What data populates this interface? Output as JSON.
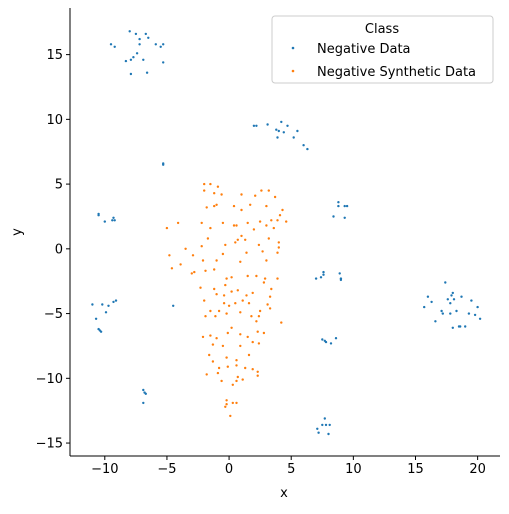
{
  "chart_data": {
    "type": "scatter",
    "xlabel": "x",
    "ylabel": "y",
    "xlim": [
      -12.8,
      21.8
    ],
    "ylim": [
      -16.0,
      18.6
    ],
    "x_ticks": [
      -10,
      -5,
      0,
      5,
      10,
      15,
      20
    ],
    "y_ticks": [
      -15,
      -10,
      -5,
      0,
      5,
      10,
      15
    ],
    "x_tick_labels": [
      "−10",
      "−5",
      "0",
      "5",
      "10",
      "15",
      "20"
    ],
    "y_tick_labels": [
      "−15",
      "−10",
      "−5",
      "0",
      "5",
      "10",
      "15"
    ],
    "grid": false,
    "legend": {
      "title": "Class",
      "placement": "top-right",
      "entries": [
        "Negative Data",
        "Negative Synthetic Data"
      ]
    },
    "series": [
      {
        "name": "Negative Data",
        "color": "#1f77b4",
        "points": [
          [
            -9.5,
            15.8
          ],
          [
            -9.2,
            15.6
          ],
          [
            -8.0,
            16.8
          ],
          [
            -7.5,
            16.6
          ],
          [
            -7.2,
            16.2
          ],
          [
            -6.7,
            16.6
          ],
          [
            -6.5,
            16.3
          ],
          [
            -5.9,
            15.8
          ],
          [
            -5.5,
            15.6
          ],
          [
            -5.3,
            15.8
          ],
          [
            -7.2,
            15.8
          ],
          [
            -8.3,
            14.5
          ],
          [
            -7.9,
            14.6
          ],
          [
            -7.7,
            14.8
          ],
          [
            -6.9,
            14.6
          ],
          [
            -6.6,
            13.6
          ],
          [
            -5.3,
            14.4
          ],
          [
            -7.9,
            13.5
          ],
          [
            -7.4,
            15.1
          ],
          [
            2.0,
            9.5
          ],
          [
            2.2,
            9.5
          ],
          [
            3.1,
            9.6
          ],
          [
            4.2,
            9.8
          ],
          [
            4.7,
            9.5
          ],
          [
            3.8,
            9.2
          ],
          [
            4.0,
            9.1
          ],
          [
            4.4,
            9.0
          ],
          [
            3.9,
            8.6
          ],
          [
            5.2,
            8.6
          ],
          [
            5.5,
            9.1
          ],
          [
            6.0,
            8.0
          ],
          [
            6.3,
            7.7
          ],
          [
            -5.3,
            6.5
          ],
          [
            -5.3,
            6.6
          ],
          [
            -10.5,
            2.7
          ],
          [
            -10.5,
            2.6
          ],
          [
            -10.0,
            2.1
          ],
          [
            -9.4,
            2.2
          ],
          [
            -9.3,
            2.4
          ],
          [
            -9.2,
            2.2
          ],
          [
            -11.0,
            -4.3
          ],
          [
            -10.2,
            -4.3
          ],
          [
            -9.7,
            -4.4
          ],
          [
            -9.3,
            -4.1
          ],
          [
            -9.1,
            -4.0
          ],
          [
            -9.9,
            -4.9
          ],
          [
            -10.7,
            -5.4
          ],
          [
            -10.5,
            -6.2
          ],
          [
            -10.4,
            -6.3
          ],
          [
            -10.3,
            -6.4
          ],
          [
            -4.5,
            -4.4
          ],
          [
            -6.9,
            -10.9
          ],
          [
            -6.8,
            -11.1
          ],
          [
            -6.7,
            -11.2
          ],
          [
            -6.9,
            -11.9
          ],
          [
            8.8,
            3.6
          ],
          [
            8.8,
            3.3
          ],
          [
            9.3,
            3.3
          ],
          [
            9.5,
            3.3
          ],
          [
            8.4,
            2.5
          ],
          [
            9.3,
            2.4
          ],
          [
            7.6,
            -1.8
          ],
          [
            7.6,
            -2.0
          ],
          [
            7.0,
            -2.3
          ],
          [
            7.4,
            -2.2
          ],
          [
            8.9,
            -1.9
          ],
          [
            9.0,
            -2.3
          ],
          [
            9.0,
            -2.4
          ],
          [
            7.5,
            -7.0
          ],
          [
            7.7,
            -7.1
          ],
          [
            7.8,
            -7.2
          ],
          [
            8.2,
            -7.3
          ],
          [
            8.6,
            -6.9
          ],
          [
            7.7,
            -13.1
          ],
          [
            7.5,
            -13.6
          ],
          [
            7.8,
            -13.6
          ],
          [
            7.1,
            -13.9
          ],
          [
            8.1,
            -13.6
          ],
          [
            7.2,
            -14.2
          ],
          [
            8.0,
            -14.3
          ],
          [
            15.7,
            -4.5
          ],
          [
            16.0,
            -3.7
          ],
          [
            16.3,
            -4.1
          ],
          [
            16.6,
            -5.6
          ],
          [
            17.1,
            -4.8
          ],
          [
            17.4,
            -2.6
          ],
          [
            17.6,
            -3.9
          ],
          [
            17.8,
            -4.2
          ],
          [
            17.9,
            -3.6
          ],
          [
            18.0,
            -3.4
          ],
          [
            18.1,
            -3.9
          ],
          [
            17.8,
            -5.0
          ],
          [
            18.0,
            -6.1
          ],
          [
            18.3,
            -4.8
          ],
          [
            18.6,
            -6.0
          ],
          [
            18.7,
            -3.7
          ],
          [
            19.0,
            -6.0
          ],
          [
            19.3,
            -5.0
          ],
          [
            19.5,
            -4.0
          ],
          [
            19.8,
            -5.1
          ],
          [
            20.0,
            -4.5
          ],
          [
            20.2,
            -5.4
          ],
          [
            17.2,
            -5.0
          ],
          [
            18.5,
            -6.0
          ]
        ]
      },
      {
        "name": "Negative Synthetic Data",
        "color": "#ff7f0e",
        "points": [
          [
            -2.0,
            5.0
          ],
          [
            -1.5,
            5.0
          ],
          [
            -0.9,
            4.8
          ],
          [
            -1.2,
            4.3
          ],
          [
            -2.0,
            4.5
          ],
          [
            -0.6,
            4.2
          ],
          [
            1.0,
            4.2
          ],
          [
            2.1,
            4.1
          ],
          [
            2.6,
            4.5
          ],
          [
            3.2,
            4.5
          ],
          [
            3.7,
            4.0
          ],
          [
            1.7,
            3.4
          ],
          [
            4.3,
            3.0
          ],
          [
            4.1,
            2.6
          ],
          [
            -1.8,
            3.2
          ],
          [
            -1.2,
            3.3
          ],
          [
            -1.0,
            3.4
          ],
          [
            0.4,
            3.3
          ],
          [
            1.0,
            3.0
          ],
          [
            3.0,
            3.3
          ],
          [
            -4.1,
            2.0
          ],
          [
            -5.0,
            1.6
          ],
          [
            -2.2,
            2.0
          ],
          [
            -1.5,
            1.6
          ],
          [
            -0.5,
            2.0
          ],
          [
            0.4,
            1.8
          ],
          [
            0.6,
            1.8
          ],
          [
            1.5,
            2.0
          ],
          [
            2.5,
            2.1
          ],
          [
            3.4,
            2.2
          ],
          [
            3.9,
            2.2
          ],
          [
            4.6,
            2.1
          ],
          [
            3.0,
            1.8
          ],
          [
            2.0,
            1.5
          ],
          [
            3.6,
            1.6
          ],
          [
            1.0,
            1.0
          ],
          [
            0.7,
            0.7
          ],
          [
            1.3,
            0.7
          ],
          [
            0.5,
            0.5
          ],
          [
            3.2,
            0.8
          ],
          [
            2.4,
            0.3
          ],
          [
            4.0,
            0.5
          ],
          [
            4.0,
            0.1
          ],
          [
            -1.7,
            0.8
          ],
          [
            -2.2,
            0.2
          ],
          [
            -0.3,
            0.3
          ],
          [
            -3.5,
            0.0
          ],
          [
            -4.8,
            -0.5
          ],
          [
            -2.9,
            -0.5
          ],
          [
            -0.5,
            -0.4
          ],
          [
            1.4,
            -0.3
          ],
          [
            2.7,
            -0.2
          ],
          [
            3.9,
            -0.3
          ],
          [
            -3.9,
            -1.2
          ],
          [
            -4.6,
            -1.5
          ],
          [
            -2.1,
            -0.9
          ],
          [
            -1.0,
            -0.9
          ],
          [
            0.9,
            -1.0
          ],
          [
            3.0,
            -0.9
          ],
          [
            -3.0,
            -1.9
          ],
          [
            -2.8,
            -1.8
          ],
          [
            -1.9,
            -1.7
          ],
          [
            -1.2,
            -1.6
          ],
          [
            0.2,
            -2.2
          ],
          [
            1.5,
            -2.1
          ],
          [
            2.2,
            -2.1
          ],
          [
            2.9,
            -2.3
          ],
          [
            3.9,
            -2.3
          ],
          [
            -0.2,
            -2.3
          ],
          [
            -2.3,
            -3.0
          ],
          [
            -1.2,
            -3.1
          ],
          [
            -0.3,
            -2.8
          ],
          [
            0.7,
            -3.2
          ],
          [
            1.9,
            -3.4
          ],
          [
            2.8,
            -2.6
          ],
          [
            3.4,
            -3.1
          ],
          [
            -1.0,
            -3.5
          ],
          [
            -0.4,
            -3.6
          ],
          [
            0.2,
            -3.3
          ],
          [
            1.4,
            -3.6
          ],
          [
            3.3,
            -3.7
          ],
          [
            -2.0,
            -4.0
          ],
          [
            -0.4,
            -4.2
          ],
          [
            0.5,
            -4.2
          ],
          [
            1.1,
            -4.0
          ],
          [
            1.6,
            -4.2
          ],
          [
            3.1,
            -4.3
          ],
          [
            -1.5,
            -4.8
          ],
          [
            -0.8,
            -4.8
          ],
          [
            0.0,
            -4.4
          ],
          [
            0.9,
            -4.9
          ],
          [
            2.5,
            -4.8
          ],
          [
            3.3,
            -4.6
          ],
          [
            -1.9,
            -5.2
          ],
          [
            -1.1,
            -5.2
          ],
          [
            -0.2,
            -5.0
          ],
          [
            1.8,
            -5.2
          ],
          [
            2.4,
            -5.2
          ],
          [
            4.2,
            -5.7
          ],
          [
            2.2,
            -5.6
          ],
          [
            -2.1,
            -6.8
          ],
          [
            -1.5,
            -6.7
          ],
          [
            -1.0,
            -6.9
          ],
          [
            -0.1,
            -6.5
          ],
          [
            0.2,
            -6.1
          ],
          [
            0.9,
            -6.6
          ],
          [
            1.5,
            -6.8
          ],
          [
            2.3,
            -6.4
          ],
          [
            2.8,
            -6.5
          ],
          [
            1.9,
            -7.2
          ],
          [
            2.4,
            -7.3
          ],
          [
            -1.3,
            -7.4
          ],
          [
            -0.5,
            -7.5
          ],
          [
            0.9,
            -7.5
          ],
          [
            -1.6,
            -8.2
          ],
          [
            -0.2,
            -8.4
          ],
          [
            1.6,
            -8.2
          ],
          [
            0.6,
            -8.6
          ],
          [
            -1.3,
            -8.7
          ],
          [
            1.9,
            -9.3
          ],
          [
            2.3,
            -9.5
          ],
          [
            -0.8,
            -9.2
          ],
          [
            -0.1,
            -9.1
          ],
          [
            0.6,
            -9.0
          ],
          [
            1.3,
            -9.2
          ],
          [
            -1.8,
            -9.7
          ],
          [
            -0.9,
            -9.6
          ],
          [
            0.7,
            -9.9
          ],
          [
            2.3,
            -9.8
          ],
          [
            1.1,
            -10.1
          ],
          [
            0.3,
            -10.5
          ],
          [
            -0.6,
            -10.2
          ],
          [
            0.6,
            -10.2
          ],
          [
            -0.2,
            -11.7
          ],
          [
            0.3,
            -11.9
          ],
          [
            -0.2,
            -12.0
          ],
          [
            0.6,
            -11.9
          ],
          [
            -0.3,
            -12.2
          ],
          [
            0.1,
            -12.9
          ]
        ]
      }
    ]
  }
}
